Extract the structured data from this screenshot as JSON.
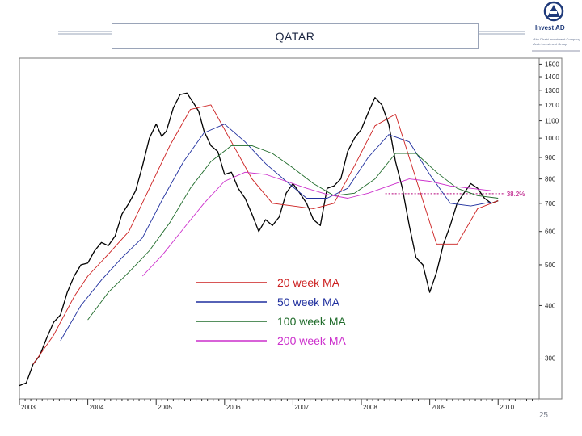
{
  "page": {
    "title": "QATAR",
    "page_number": "25"
  },
  "logo": {
    "name": "Invest AD",
    "tagline_1": "Abu Dhabi Investment Company",
    "tagline_2": "Arab Investment Group",
    "icon": "invest-ad-logo-icon"
  },
  "colors": {
    "price": "#000000",
    "ma20": "#cc1f1f",
    "ma50": "#1f2f9e",
    "ma100": "#1f6b2a",
    "ma200": "#cc2fcc",
    "fib": "#b4007a",
    "frame": "#7a7a7a"
  },
  "chart_data": {
    "type": "line",
    "y_scale": "log",
    "ylim": [
      240,
      1550
    ],
    "xlim": [
      2003.0,
      2010.6
    ],
    "y_ticks": [
      300,
      400,
      500,
      600,
      700,
      800,
      900,
      1000,
      1100,
      1200,
      1300,
      1400,
      1500
    ],
    "x_ticks": [
      "2003",
      "2004",
      "2005",
      "2006",
      "2007",
      "2008",
      "2009",
      "2010"
    ],
    "grid": false,
    "legend_position": "center-left",
    "annotation": {
      "label": "38.2%",
      "y": 738,
      "x_from": 2008.35,
      "x_to": 2010.1
    },
    "series": [
      {
        "name": "Price",
        "x": [
          2003.0,
          2003.1,
          2003.2,
          2003.3,
          2003.4,
          2003.5,
          2003.6,
          2003.7,
          2003.8,
          2003.9,
          2004.0,
          2004.1,
          2004.2,
          2004.3,
          2004.4,
          2004.5,
          2004.6,
          2004.7,
          2004.8,
          2004.9,
          2005.0,
          2005.08,
          2005.15,
          2005.25,
          2005.35,
          2005.45,
          2005.55,
          2005.62,
          2005.7,
          2005.8,
          2005.9,
          2006.0,
          2006.1,
          2006.2,
          2006.3,
          2006.4,
          2006.5,
          2006.6,
          2006.7,
          2006.8,
          2006.9,
          2007.0,
          2007.1,
          2007.2,
          2007.3,
          2007.4,
          2007.5,
          2007.6,
          2007.7,
          2007.8,
          2007.9,
          2008.0,
          2008.1,
          2008.2,
          2008.3,
          2008.4,
          2008.5,
          2008.6,
          2008.7,
          2008.8,
          2008.9,
          2009.0,
          2009.1,
          2009.2,
          2009.3,
          2009.4,
          2009.5,
          2009.6,
          2009.7,
          2009.8,
          2009.9,
          2010.0
        ],
        "values": [
          258,
          262,
          290,
          305,
          335,
          365,
          380,
          430,
          470,
          500,
          505,
          540,
          565,
          555,
          585,
          660,
          700,
          750,
          860,
          1000,
          1080,
          1010,
          1040,
          1180,
          1270,
          1280,
          1210,
          1160,
          1040,
          960,
          930,
          820,
          830,
          760,
          720,
          660,
          600,
          640,
          620,
          650,
          740,
          780,
          740,
          700,
          640,
          620,
          760,
          770,
          800,
          930,
          1000,
          1050,
          1150,
          1250,
          1200,
          1080,
          880,
          760,
          620,
          520,
          500,
          430,
          480,
          560,
          620,
          700,
          740,
          780,
          760,
          720,
          700,
          710
        ]
      },
      {
        "name": "20 week MA",
        "x": [
          2003.2,
          2003.5,
          2003.8,
          2004.0,
          2004.3,
          2004.6,
          2004.9,
          2005.2,
          2005.5,
          2005.8,
          2006.1,
          2006.4,
          2006.7,
          2007.0,
          2007.3,
          2007.6,
          2007.9,
          2008.2,
          2008.5,
          2008.8,
          2009.1,
          2009.4,
          2009.7,
          2010.0
        ],
        "values": [
          290,
          340,
          420,
          470,
          530,
          600,
          760,
          960,
          1170,
          1200,
          980,
          800,
          700,
          690,
          680,
          700,
          860,
          1070,
          1140,
          800,
          560,
          560,
          680,
          710
        ]
      },
      {
        "name": "50 week MA",
        "x": [
          2003.6,
          2003.9,
          2004.2,
          2004.5,
          2004.8,
          2005.1,
          2005.4,
          2005.7,
          2006.0,
          2006.3,
          2006.6,
          2006.9,
          2007.2,
          2007.5,
          2007.8,
          2008.1,
          2008.4,
          2008.7,
          2009.0,
          2009.3,
          2009.6,
          2009.9
        ],
        "values": [
          330,
          400,
          460,
          520,
          580,
          720,
          880,
          1030,
          1080,
          980,
          870,
          790,
          720,
          720,
          760,
          900,
          1020,
          980,
          820,
          700,
          690,
          705
        ]
      },
      {
        "name": "100 week MA",
        "x": [
          2004.0,
          2004.3,
          2004.6,
          2004.9,
          2005.2,
          2005.5,
          2005.8,
          2006.1,
          2006.4,
          2006.7,
          2007.0,
          2007.3,
          2007.6,
          2007.9,
          2008.2,
          2008.5,
          2008.8,
          2009.1,
          2009.4,
          2009.7,
          2010.0
        ],
        "values": [
          370,
          430,
          480,
          540,
          630,
          760,
          880,
          960,
          960,
          920,
          850,
          780,
          730,
          740,
          800,
          920,
          920,
          830,
          760,
          730,
          720
        ]
      },
      {
        "name": "200 week MA",
        "x": [
          2004.8,
          2005.1,
          2005.4,
          2005.7,
          2006.0,
          2006.3,
          2006.6,
          2006.9,
          2007.2,
          2007.5,
          2007.8,
          2008.1,
          2008.4,
          2008.7,
          2009.0,
          2009.3,
          2009.6,
          2009.9
        ],
        "values": [
          470,
          530,
          610,
          700,
          790,
          830,
          820,
          790,
          760,
          735,
          720,
          740,
          770,
          800,
          790,
          770,
          760,
          750
        ]
      }
    ]
  }
}
